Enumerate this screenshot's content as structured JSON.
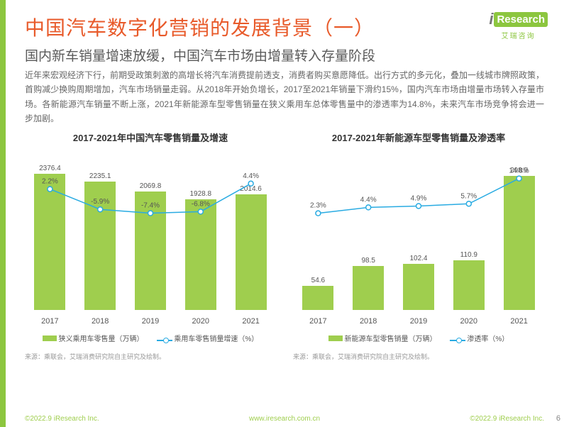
{
  "title_main": "中国汽车数字化营销的发展背景（一）",
  "title_sub": "国内新车销量增速放缓，中国汽车市场由增量转入存量阶段",
  "body_text": "近年来宏观经济下行，前期受政策刺激的高增长将汽车消费提前透支，消费者购买意愿降低。出行方式的多元化，叠加一线城市牌照政策，首购减少换购周期增加，汽车市场销量走弱。从2018年开始负增长，2017至2021年销量下滑约15%，国内汽车市场由增量市场转入存量市场。各新能源汽车销量不断上涨，2021年新能源车型零售销量在狭义乘用车总体零售量中的渗透率为14.8%，未来汽车市场竞争将会进一步加剧。",
  "logo": {
    "brand": "Research",
    "i": "i",
    "cn": "艾瑞咨询"
  },
  "chart1": {
    "title": "2017-2021年中国汽车零售销量及增速",
    "categories": [
      "2017",
      "2018",
      "2019",
      "2020",
      "2021"
    ],
    "bar_values": [
      2376.4,
      2235.1,
      2069.8,
      1928.8,
      2014.6
    ],
    "line_values": [
      2.2,
      -5.9,
      -7.4,
      -6.8,
      4.4
    ],
    "bar_color": "#9fce4e",
    "line_color": "#29abe2",
    "bar_ymax": 2500,
    "line_ymin": -10,
    "line_ymax": 10,
    "legend_bar": "狭义乘用车零售量（万辆）",
    "legend_line": "乘用车零售销量增速（%）",
    "source": "来源：乘联会，艾瑞消费研究院自主研究及绘制。"
  },
  "chart2": {
    "title": "2017-2021年新能源车型零售销量及渗透率",
    "categories": [
      "2017",
      "2018",
      "2019",
      "2020",
      "2021"
    ],
    "bar_values": [
      54.6,
      98.5,
      102.4,
      110.9,
      298.9
    ],
    "line_values": [
      2.3,
      4.4,
      4.9,
      5.7,
      14.8
    ],
    "bar_color": "#9fce4e",
    "line_color": "#29abe2",
    "bar_ymax": 320,
    "line_ymin": 0,
    "line_ymax": 18,
    "legend_bar": "新能源车型零售销量（万辆）",
    "legend_line": "渗透率（%）",
    "source": "来源：乘联会，艾瑞消费研究院自主研究及绘制。"
  },
  "footer": {
    "left": "©2022.9 iResearch Inc.",
    "mid": "www.iresearch.com.cn",
    "right": "©2022.9 iResearch Inc.",
    "page": "6"
  }
}
